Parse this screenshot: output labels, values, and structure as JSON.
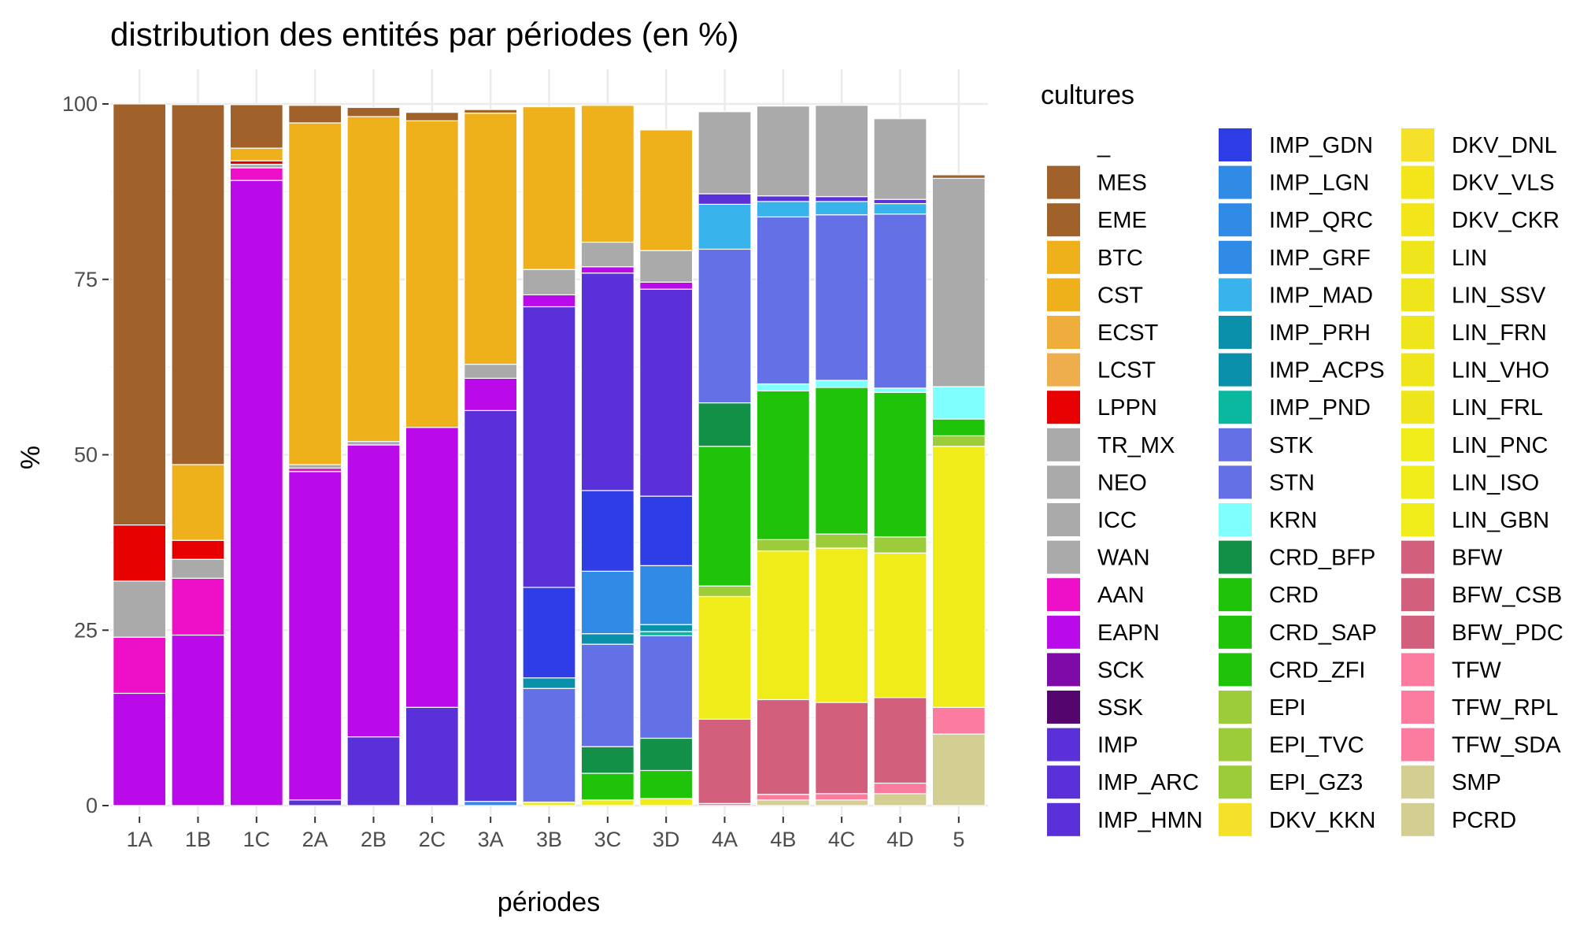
{
  "chart_data": {
    "type": "bar",
    "stacked": true,
    "title": "distribution des entités par périodes (en %)",
    "xlabel": "périodes",
    "ylabel": "%",
    "ylim": [
      0,
      100
    ],
    "yticks": [
      0,
      25,
      50,
      75,
      100
    ],
    "categories": [
      "1A",
      "1B",
      "1C",
      "2A",
      "2B",
      "2C",
      "3A",
      "3B",
      "3C",
      "3D",
      "4A",
      "4B",
      "4C",
      "4D",
      "5"
    ],
    "legend_title": "cultures",
    "legend_position": "right",
    "series": [
      {
        "name": "_",
        "color": "#ffffff",
        "values": [
          0,
          0,
          0,
          0,
          0,
          0,
          0,
          0,
          0,
          0,
          0,
          0,
          0,
          0,
          0
        ]
      },
      {
        "name": "MES",
        "color": "#a0622a",
        "values": [
          60,
          51.3,
          6.2,
          2.5,
          1.3,
          1.2,
          0.5,
          0,
          0,
          0,
          0,
          0,
          0,
          0,
          0.5
        ]
      },
      {
        "name": "EME",
        "color": "#a0622a",
        "values": [
          0,
          0,
          0,
          0,
          0,
          0,
          0,
          0,
          0,
          0,
          0,
          0,
          0,
          0,
          0
        ]
      },
      {
        "name": "BTC",
        "color": "#eeb01b",
        "values": [
          0,
          0,
          0,
          0,
          0,
          0,
          0,
          0,
          0,
          0,
          0,
          0,
          0,
          0,
          0
        ]
      },
      {
        "name": "CST",
        "color": "#eeb01b",
        "values": [
          0,
          10.8,
          1.8,
          48.7,
          46.3,
          43.7,
          35.8,
          23.2,
          19.5,
          17.2,
          0,
          0,
          0,
          0,
          0
        ]
      },
      {
        "name": "ECST",
        "color": "#efae3c",
        "values": [
          0,
          0,
          0,
          0,
          0,
          0,
          0,
          0,
          0,
          0,
          0,
          0,
          0,
          0,
          0
        ]
      },
      {
        "name": "LCST",
        "color": "#efae4e",
        "values": [
          0,
          0,
          0,
          0,
          0,
          0,
          0,
          0,
          0,
          0,
          0,
          0,
          0,
          0,
          0
        ]
      },
      {
        "name": "LPPN",
        "color": "#e60000",
        "values": [
          8,
          2.7,
          0.5,
          0,
          0,
          0,
          0,
          0,
          0,
          0,
          0,
          0,
          0,
          0,
          0
        ]
      },
      {
        "name": "TR_MX",
        "color": "#aaaaaa",
        "values": [
          0,
          0,
          0,
          0,
          0,
          0,
          0,
          0,
          0,
          0,
          0,
          0,
          0,
          0,
          0
        ]
      },
      {
        "name": "NEO",
        "color": "#aaaaaa",
        "values": [
          0,
          0,
          0,
          0,
          0,
          0,
          0,
          0,
          0,
          0,
          0,
          0,
          0,
          0,
          0
        ]
      },
      {
        "name": "ICC",
        "color": "#aaaaaa",
        "values": [
          0,
          0,
          0,
          0,
          0,
          0,
          0,
          0,
          0,
          0,
          0,
          0,
          0,
          0,
          0
        ]
      },
      {
        "name": "WAN",
        "color": "#aaaaaa",
        "values": [
          8,
          2.7,
          0.5,
          0.5,
          0.5,
          0,
          2,
          3.6,
          3.5,
          4.5,
          11.7,
          12.8,
          13,
          11.5,
          29.7
        ]
      },
      {
        "name": "AAN",
        "color": "#ee10c8",
        "values": [
          8,
          8.1,
          1.8,
          0.5,
          0,
          0,
          0,
          0,
          0,
          0,
          0,
          0,
          0,
          0,
          0
        ]
      },
      {
        "name": "EAPN",
        "color": "#bb0aea",
        "values": [
          16,
          24.3,
          89.1,
          46.8,
          41.6,
          39.9,
          4.6,
          1.7,
          0.9,
          1,
          0,
          0,
          0,
          0,
          0
        ]
      },
      {
        "name": "SCK",
        "color": "#7e0aa8",
        "values": [
          0,
          0,
          0,
          0,
          0,
          0,
          0,
          0,
          0,
          0,
          0,
          0,
          0,
          0,
          0
        ]
      },
      {
        "name": "SSK",
        "color": "#54056e",
        "values": [
          0,
          0,
          0,
          0,
          0,
          0,
          0,
          0,
          0,
          0,
          0,
          0,
          0,
          0,
          0
        ]
      },
      {
        "name": "IMP",
        "color": "#5a31d8",
        "values": [
          0,
          0,
          0,
          0,
          0,
          0,
          0,
          0,
          0,
          0,
          0,
          0,
          0,
          0,
          0
        ]
      },
      {
        "name": "IMP_ARC",
        "color": "#5a31d8",
        "values": [
          0,
          0,
          0,
          0.8,
          9.8,
          14,
          55.7,
          40,
          31,
          29.5,
          1.5,
          0.8,
          0.7,
          0.6,
          0
        ]
      },
      {
        "name": "IMP_HMN",
        "color": "#5a31d8",
        "values": [
          0,
          0,
          0,
          0,
          0,
          0,
          0,
          0,
          0,
          0,
          0,
          0,
          0,
          0,
          0
        ]
      },
      {
        "name": "IMP_GDN",
        "color": "#2e3de6",
        "values": [
          0,
          0,
          0,
          0,
          0,
          0,
          0,
          12.9,
          11.5,
          9.9,
          0,
          0,
          0,
          0,
          0
        ]
      },
      {
        "name": "IMP_LGN",
        "color": "#308be6",
        "values": [
          0,
          0,
          0,
          0,
          0,
          0,
          0,
          0,
          0,
          0,
          0,
          0,
          0,
          0,
          0
        ]
      },
      {
        "name": "IMP_QRC",
        "color": "#308be6",
        "values": [
          0,
          0,
          0,
          0,
          0,
          0,
          0,
          0,
          0,
          0,
          0,
          0,
          0,
          0,
          0
        ]
      },
      {
        "name": "IMP_GRF",
        "color": "#308be6",
        "values": [
          0,
          0,
          0,
          0,
          0,
          0,
          0.6,
          0,
          8.9,
          8.4,
          0,
          0,
          0,
          0,
          0
        ]
      },
      {
        "name": "IMP_MAD",
        "color": "#38b3ec",
        "values": [
          0,
          0,
          0,
          0,
          0,
          0,
          0,
          0,
          0,
          0,
          6.4,
          2.2,
          1.9,
          1.5,
          0
        ]
      },
      {
        "name": "IMP_PRH",
        "color": "#0a90aa",
        "values": [
          0,
          0,
          0,
          0,
          0,
          0,
          0,
          0,
          0,
          0,
          0,
          0,
          0,
          0,
          0
        ]
      },
      {
        "name": "IMP_ACPS",
        "color": "#0a90aa",
        "values": [
          0,
          0,
          0,
          0,
          0,
          0,
          0,
          1.5,
          1.5,
          1,
          0,
          0,
          0,
          0,
          0
        ]
      },
      {
        "name": "IMP_PND",
        "color": "#0ab8a0",
        "values": [
          0,
          0,
          0,
          0,
          0,
          0,
          0,
          0,
          0,
          0.6,
          0,
          0,
          0,
          0,
          0
        ]
      },
      {
        "name": "STK",
        "color": "#6470e6",
        "values": [
          0,
          0,
          0,
          0,
          0,
          0,
          0,
          0,
          0,
          0,
          0,
          0,
          0,
          0,
          0
        ]
      },
      {
        "name": "STN",
        "color": "#6470e6",
        "values": [
          0,
          0,
          0,
          0,
          0,
          0,
          0,
          16.2,
          14.6,
          14.6,
          21.9,
          23.8,
          23.6,
          24.8,
          0
        ]
      },
      {
        "name": "KRN",
        "color": "#80ffff",
        "values": [
          0,
          0,
          0,
          0,
          0,
          0,
          0,
          0,
          0,
          0,
          0,
          1,
          1,
          0.6,
          4.6
        ]
      },
      {
        "name": "CRD_BFP",
        "color": "#139048",
        "values": [
          0,
          0,
          0,
          0,
          0,
          0,
          0,
          0,
          3.8,
          4.6,
          6.2,
          0,
          0,
          0,
          0
        ]
      },
      {
        "name": "CRD",
        "color": "#1ec30a",
        "values": [
          0,
          0,
          0,
          0,
          0,
          0,
          0,
          0,
          0,
          0,
          0,
          0,
          0,
          0,
          0
        ]
      },
      {
        "name": "CRD_SAP",
        "color": "#1ec30a",
        "values": [
          0,
          0,
          0,
          0,
          0,
          0,
          0,
          0,
          0,
          0,
          0,
          0,
          0,
          0,
          0
        ]
      },
      {
        "name": "CRD_ZFI",
        "color": "#1ec30a",
        "values": [
          0,
          0,
          0,
          0,
          0,
          0,
          0,
          0,
          3.8,
          4,
          19.9,
          21.2,
          20.9,
          20.6,
          2.4
        ]
      },
      {
        "name": "EPI",
        "color": "#9ccc3a",
        "values": [
          0,
          0,
          0,
          0,
          0,
          0,
          0,
          0,
          0,
          0,
          0,
          0,
          0,
          0,
          0
        ]
      },
      {
        "name": "EPI_TVC",
        "color": "#9ccc3a",
        "values": [
          0,
          0,
          0,
          0,
          0,
          0,
          0,
          0,
          0,
          0,
          0,
          0,
          0,
          0,
          0
        ]
      },
      {
        "name": "EPI_GZ3",
        "color": "#9ccc3a",
        "values": [
          0,
          0,
          0,
          0,
          0,
          0,
          0,
          0,
          0,
          0,
          1.5,
          1.6,
          2,
          2.3,
          1.5
        ]
      },
      {
        "name": "DKV_KKN",
        "color": "#f5e02a",
        "values": [
          0,
          0,
          0,
          0,
          0,
          0,
          0,
          0,
          0,
          0,
          0,
          0,
          0,
          0,
          0
        ]
      },
      {
        "name": "DKV_DNL",
        "color": "#f5e02a",
        "values": [
          0,
          0,
          0,
          0,
          0,
          0,
          0,
          0,
          0,
          0,
          0,
          0,
          0,
          0,
          0
        ]
      },
      {
        "name": "DKV_VLS",
        "color": "#f2e51a",
        "values": [
          0,
          0,
          0,
          0,
          0,
          0,
          0,
          0,
          0,
          0,
          0,
          0,
          0,
          0,
          0
        ]
      },
      {
        "name": "DKV_CKR",
        "color": "#f2e51a",
        "values": [
          0,
          0,
          0,
          0,
          0,
          0,
          0,
          0,
          0,
          0,
          0,
          0,
          0,
          0,
          0
        ]
      },
      {
        "name": "LIN",
        "color": "#eee61a",
        "values": [
          0,
          0,
          0,
          0,
          0,
          0,
          0,
          0,
          0,
          0,
          0,
          0,
          0,
          0,
          0
        ]
      },
      {
        "name": "LIN_SSV",
        "color": "#eee61a",
        "values": [
          0,
          0,
          0,
          0,
          0,
          0,
          0,
          0,
          0,
          0,
          0,
          0,
          0,
          0,
          0
        ]
      },
      {
        "name": "LIN_FRN",
        "color": "#eee61a",
        "values": [
          0,
          0,
          0,
          0,
          0,
          0,
          0,
          0,
          0,
          0,
          0,
          0,
          0,
          0,
          0
        ]
      },
      {
        "name": "LIN_VHO",
        "color": "#eee61a",
        "values": [
          0,
          0,
          0,
          0,
          0,
          0,
          0,
          0,
          0,
          0,
          0,
          0,
          0,
          0,
          0
        ]
      },
      {
        "name": "LIN_FRL",
        "color": "#eee61a",
        "values": [
          0,
          0,
          0,
          0,
          0,
          0,
          0,
          0,
          0,
          0,
          0,
          0,
          0,
          0,
          0
        ]
      },
      {
        "name": "LIN_PNC",
        "color": "#f0ec1a",
        "values": [
          0,
          0,
          0,
          0,
          0,
          0,
          0,
          0,
          0,
          0,
          0,
          0,
          0,
          0,
          0
        ]
      },
      {
        "name": "LIN_ISO",
        "color": "#f0ec1a",
        "values": [
          0,
          0,
          0,
          0,
          0,
          0,
          0,
          0.5,
          0.8,
          1,
          17.5,
          21.2,
          22,
          20.6,
          37.2
        ]
      },
      {
        "name": "LIN_GBN",
        "color": "#f0ec1a",
        "values": [
          0,
          0,
          0,
          0,
          0,
          0,
          0,
          0,
          0,
          0,
          0,
          0,
          0,
          0,
          0
        ]
      },
      {
        "name": "BFW",
        "color": "#d2607d",
        "values": [
          0,
          0,
          0,
          0,
          0,
          0,
          0,
          0,
          0,
          0,
          0,
          0,
          0,
          0,
          0
        ]
      },
      {
        "name": "BFW_CSB",
        "color": "#d2607d",
        "values": [
          0,
          0,
          0,
          0,
          0,
          0,
          0,
          0,
          0,
          0,
          0,
          0,
          0,
          0,
          0
        ]
      },
      {
        "name": "BFW_PDC",
        "color": "#d2607d",
        "values": [
          0,
          0,
          0,
          0,
          0,
          0,
          0,
          0,
          0,
          0,
          12,
          13.5,
          13,
          12.2,
          0
        ]
      },
      {
        "name": "TFW",
        "color": "#fc7ca0",
        "values": [
          0,
          0,
          0,
          0,
          0,
          0,
          0,
          0,
          0,
          0,
          0,
          0,
          0,
          0,
          0
        ]
      },
      {
        "name": "TFW_RPL",
        "color": "#fc7ca0",
        "values": [
          0,
          0,
          0,
          0,
          0,
          0,
          0,
          0,
          0,
          0,
          0,
          0,
          0,
          0,
          0
        ]
      },
      {
        "name": "TFW_SDA",
        "color": "#fc7ca0",
        "values": [
          0,
          0,
          0,
          0,
          0,
          0,
          0,
          0,
          0,
          0,
          0.3,
          0.8,
          0.9,
          1.5,
          3.8
        ]
      },
      {
        "name": "SMP",
        "color": "#d3cf92",
        "values": [
          0,
          0,
          0,
          0,
          0,
          0,
          0,
          0,
          0,
          0,
          0,
          0,
          0,
          0,
          0
        ]
      },
      {
        "name": "PCRD",
        "color": "#d3cf92",
        "values": [
          0,
          0,
          0,
          0,
          0,
          0,
          0,
          0,
          0,
          0,
          0,
          0.8,
          0.8,
          1.7,
          10.2
        ]
      }
    ]
  }
}
